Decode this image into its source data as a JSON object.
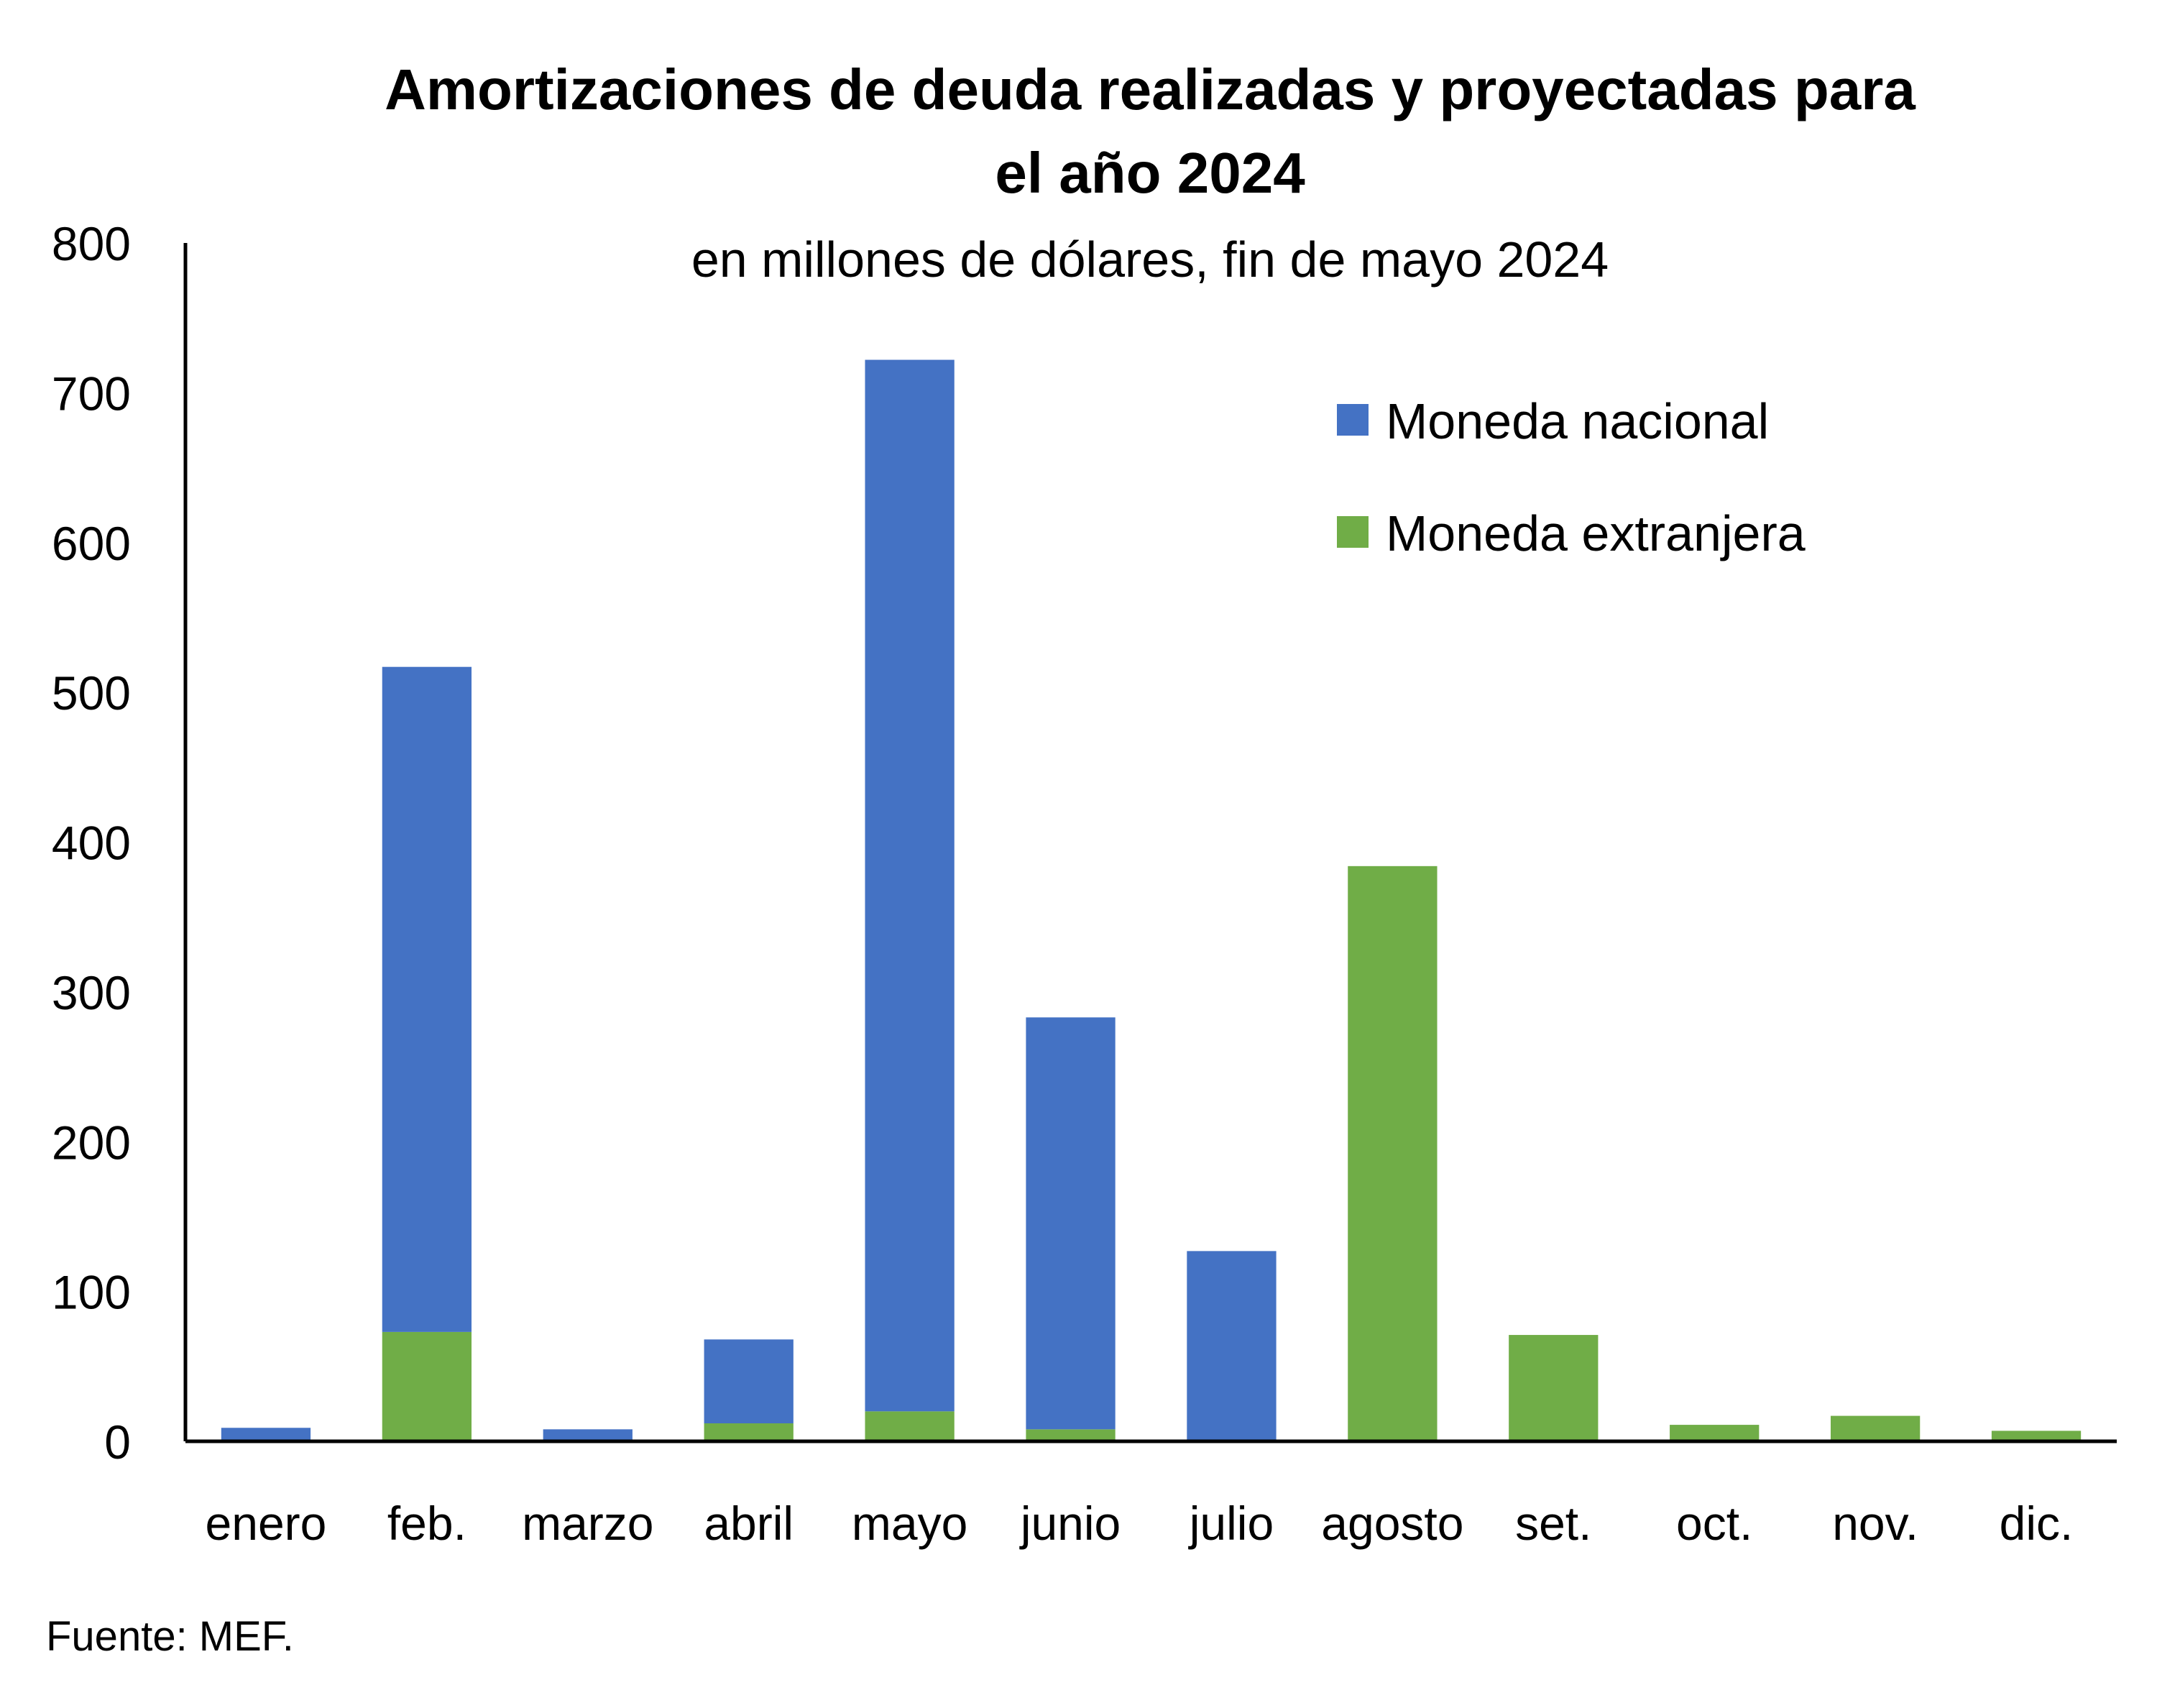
{
  "chart_data": {
    "type": "bar",
    "stacked": true,
    "title_lines": [
      "Amortizaciones de deuda realizadas y proyectadas para",
      "el año 2024"
    ],
    "subtitle": "en millones de dólares, fin de mayo 2024",
    "categories": [
      "enero",
      "feb.",
      "marzo",
      "abril",
      "mayo",
      "junio",
      "julio",
      "agosto",
      "set.",
      "oct.",
      "nov.",
      "dic."
    ],
    "series": [
      {
        "name": "Moneda extranjera",
        "color": "#70ad47",
        "values": [
          0,
          73,
          0,
          12,
          20,
          8,
          0,
          384,
          71,
          11,
          17,
          7
        ]
      },
      {
        "name": "Moneda nacional",
        "color": "#4472c4",
        "values": [
          9,
          444,
          8,
          56,
          702,
          275,
          127,
          0,
          0,
          0,
          0,
          0
        ]
      }
    ],
    "legend_order": [
      "Moneda nacional",
      "Moneda extranjera"
    ],
    "legend_position": "top-right",
    "ylim": [
      0,
      800
    ],
    "yticks": [
      0,
      100,
      200,
      300,
      400,
      500,
      600,
      700,
      800
    ],
    "xlabel": "",
    "ylabel": "",
    "grid": false
  },
  "source": "Fuente: MEF."
}
